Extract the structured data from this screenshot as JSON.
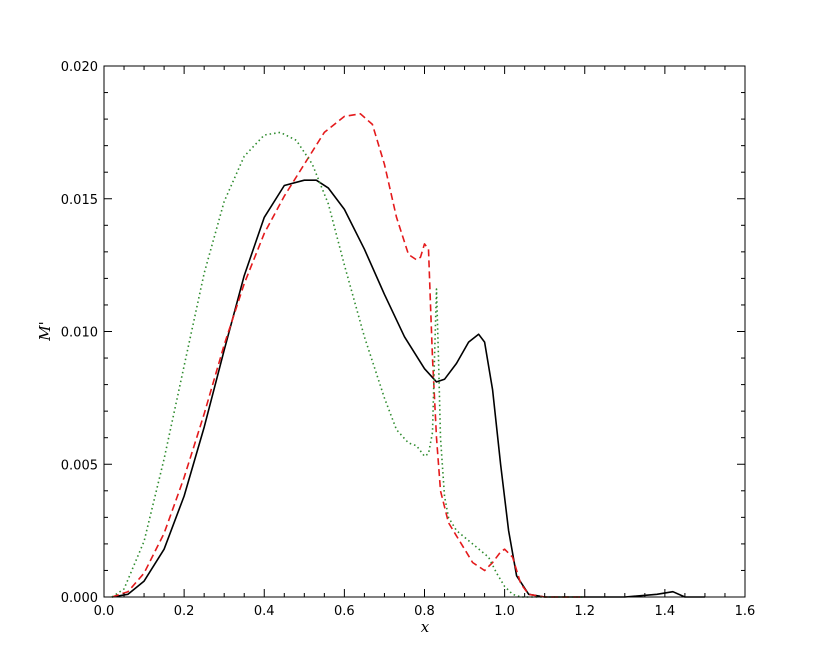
{
  "chart_data": {
    "type": "line",
    "title": "",
    "xlabel": "x",
    "ylabel": "M'",
    "xlim": [
      0.0,
      1.6
    ],
    "ylim": [
      0.0,
      0.02
    ],
    "xticks": [
      "0.0",
      "0.2",
      "0.4",
      "0.6",
      "0.8",
      "1.0",
      "1.2",
      "1.4",
      "1.6"
    ],
    "yticks": [
      "0.000",
      "0.005",
      "0.010",
      "0.015",
      "0.020"
    ],
    "grid": false,
    "series": [
      {
        "color": "#000000",
        "style": "solid",
        "x": [
          0.02,
          0.06,
          0.1,
          0.15,
          0.2,
          0.25,
          0.3,
          0.35,
          0.4,
          0.45,
          0.5,
          0.53,
          0.56,
          0.6,
          0.65,
          0.7,
          0.75,
          0.8,
          0.83,
          0.85,
          0.88,
          0.91,
          0.935,
          0.95,
          0.97,
          0.99,
          1.01,
          1.03,
          1.06,
          1.1,
          1.2,
          1.3,
          1.38,
          1.42,
          1.45,
          1.5
        ],
        "y": [
          0.0,
          0.0001,
          0.0006,
          0.0018,
          0.0038,
          0.0064,
          0.0093,
          0.0121,
          0.0143,
          0.0155,
          0.0157,
          0.0157,
          0.0154,
          0.0146,
          0.0131,
          0.0114,
          0.0098,
          0.0086,
          0.0081,
          0.0082,
          0.0088,
          0.0096,
          0.0099,
          0.0096,
          0.0078,
          0.005,
          0.0025,
          0.0008,
          0.0001,
          0.0,
          0.0,
          0.0,
          0.0001,
          0.0002,
          0.0,
          0.0
        ]
      },
      {
        "color": "#e41a1c",
        "style": "dashed",
        "x": [
          0.02,
          0.06,
          0.1,
          0.15,
          0.2,
          0.25,
          0.3,
          0.35,
          0.4,
          0.45,
          0.5,
          0.55,
          0.6,
          0.64,
          0.67,
          0.7,
          0.73,
          0.76,
          0.78,
          0.79,
          0.8,
          0.81,
          0.815,
          0.82,
          0.83,
          0.84,
          0.86,
          0.88,
          0.9,
          0.92,
          0.95,
          0.97,
          0.99,
          1.0,
          1.02,
          1.04,
          1.06,
          1.1,
          1.2
        ],
        "y": [
          0.0,
          0.0002,
          0.0009,
          0.0024,
          0.0045,
          0.0069,
          0.0095,
          0.0118,
          0.0137,
          0.0151,
          0.0163,
          0.0175,
          0.0181,
          0.0182,
          0.0178,
          0.0163,
          0.0143,
          0.0129,
          0.0127,
          0.0128,
          0.0133,
          0.0131,
          0.011,
          0.009,
          0.006,
          0.004,
          0.0028,
          0.0023,
          0.0018,
          0.0013,
          0.001,
          0.0013,
          0.0017,
          0.0018,
          0.0015,
          0.0005,
          0.0001,
          0.0,
          0.0
        ]
      },
      {
        "color": "#2e8b2e",
        "style": "dotted",
        "x": [
          0.02,
          0.05,
          0.1,
          0.15,
          0.2,
          0.25,
          0.3,
          0.35,
          0.4,
          0.44,
          0.48,
          0.52,
          0.56,
          0.6,
          0.65,
          0.7,
          0.73,
          0.76,
          0.78,
          0.8,
          0.81,
          0.82,
          0.825,
          0.83,
          0.835,
          0.84,
          0.85,
          0.86,
          0.88,
          0.92,
          0.96,
          0.98,
          1.0,
          1.02,
          1.04,
          1.06,
          1.1,
          1.2
        ],
        "y": [
          0.0,
          0.0003,
          0.0021,
          0.0052,
          0.0087,
          0.0122,
          0.0149,
          0.0166,
          0.0174,
          0.0175,
          0.0172,
          0.0163,
          0.0148,
          0.0125,
          0.0098,
          0.0075,
          0.0063,
          0.0058,
          0.0057,
          0.0053,
          0.0054,
          0.0062,
          0.009,
          0.0116,
          0.009,
          0.006,
          0.0038,
          0.003,
          0.0025,
          0.002,
          0.0015,
          0.0009,
          0.0004,
          0.0001,
          0.0,
          0.0,
          0.0,
          0.0
        ]
      }
    ]
  }
}
